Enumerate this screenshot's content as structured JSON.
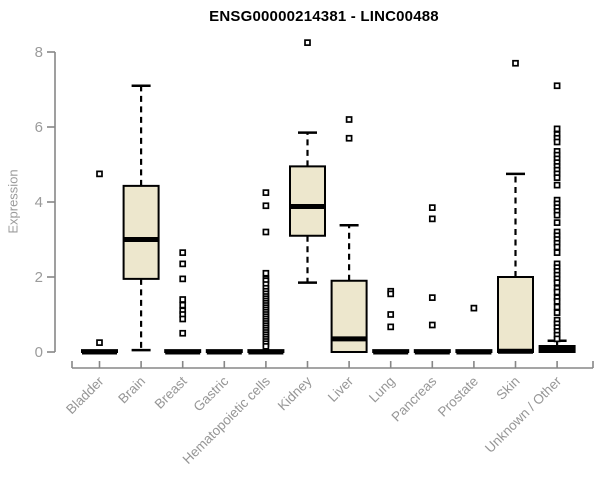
{
  "chart_data": {
    "type": "boxplot",
    "title": "ENSG00000214381 - LINC00488",
    "ylabel": "Expression",
    "xlabel": "",
    "ylim": [
      0,
      8
    ],
    "yticks": [
      0,
      2,
      4,
      6,
      8
    ],
    "grid": false,
    "legend": null,
    "colors": {
      "box_fill": "#EDE7CD",
      "box_stroke": "#000000",
      "axis": "#878787",
      "tick_label": "#969696",
      "title": "#000000"
    },
    "categories": [
      "Bladder",
      "Brain",
      "Breast",
      "Gastric",
      "Hematopoietic cells",
      "Kidney",
      "Liver",
      "Lung",
      "Pancreas",
      "Prostate",
      "Skin",
      "Unknown / Other"
    ],
    "boxes": [
      {
        "category": "Bladder",
        "low": 0,
        "q1": 0,
        "median": 0,
        "q3": 0.05,
        "high": 0.05,
        "outliers": [
          4.75,
          0.25
        ]
      },
      {
        "category": "Brain",
        "low": 0.05,
        "q1": 1.95,
        "median": 3.0,
        "q3": 4.43,
        "high": 7.1,
        "outliers": []
      },
      {
        "category": "Breast",
        "low": 0,
        "q1": 0,
        "median": 0,
        "q3": 0.05,
        "high": 0.05,
        "outliers": [
          2.65,
          2.35,
          1.95,
          1.4,
          1.25,
          1.1,
          1.0,
          0.88,
          0.5
        ]
      },
      {
        "category": "Gastric",
        "low": 0,
        "q1": 0,
        "median": 0,
        "q3": 0.05,
        "high": 0.05,
        "outliers": []
      },
      {
        "category": "Hematopoietic cells",
        "low": 0,
        "q1": 0,
        "median": 0,
        "q3": 0.05,
        "high": 0.05,
        "outliers": [
          4.25,
          3.9,
          3.2,
          2.1,
          1.95,
          1.9,
          1.8,
          1.7,
          1.62,
          1.55,
          1.48,
          1.42,
          1.36,
          1.3,
          1.24,
          1.18,
          1.12,
          1.06,
          1.0,
          0.94,
          0.88,
          0.82,
          0.76,
          0.7,
          0.64,
          0.58,
          0.52,
          0.46,
          0.4,
          0.34,
          0.28,
          0.22,
          0.15
        ]
      },
      {
        "category": "Kidney",
        "low": 1.85,
        "q1": 3.1,
        "median": 3.88,
        "q3": 4.95,
        "high": 5.85,
        "outliers": [
          8.25
        ]
      },
      {
        "category": "Liver",
        "low": 0,
        "q1": 0,
        "median": 0.35,
        "q3": 1.9,
        "high": 3.38,
        "outliers": [
          6.2,
          5.7
        ]
      },
      {
        "category": "Lung",
        "low": 0,
        "q1": 0,
        "median": 0,
        "q3": 0.05,
        "high": 0.05,
        "outliers": [
          1.62,
          1.55,
          1.0,
          0.67
        ]
      },
      {
        "category": "Pancreas",
        "low": 0,
        "q1": 0,
        "median": 0,
        "q3": 0.05,
        "high": 0.05,
        "outliers": [
          3.85,
          3.55,
          1.45,
          0.72
        ]
      },
      {
        "category": "Prostate",
        "low": 0,
        "q1": 0,
        "median": 0,
        "q3": 0.05,
        "high": 0.05,
        "outliers": [
          1.17
        ]
      },
      {
        "category": "Skin",
        "low": 0,
        "q1": 0,
        "median": 0.02,
        "q3": 2.0,
        "high": 4.75,
        "outliers": [
          7.7
        ]
      },
      {
        "category": "Unknown / Other",
        "low": 0,
        "q1": 0,
        "median": 0.07,
        "q3": 0.16,
        "high": 0.3,
        "outliers": [
          7.1,
          5.95,
          5.8,
          5.7,
          5.6,
          5.35,
          5.25,
          5.15,
          5.05,
          4.95,
          4.85,
          4.75,
          4.65,
          4.45,
          4.05,
          3.95,
          3.85,
          3.75,
          3.65,
          3.45,
          3.2,
          3.1,
          3.0,
          2.9,
          2.8,
          2.65,
          2.35,
          2.25,
          2.15,
          2.05,
          1.95,
          1.85,
          1.7,
          1.6,
          1.45,
          1.35,
          1.2,
          1.05,
          0.85,
          0.75,
          0.65,
          0.55,
          0.45,
          0.35
        ]
      }
    ]
  }
}
